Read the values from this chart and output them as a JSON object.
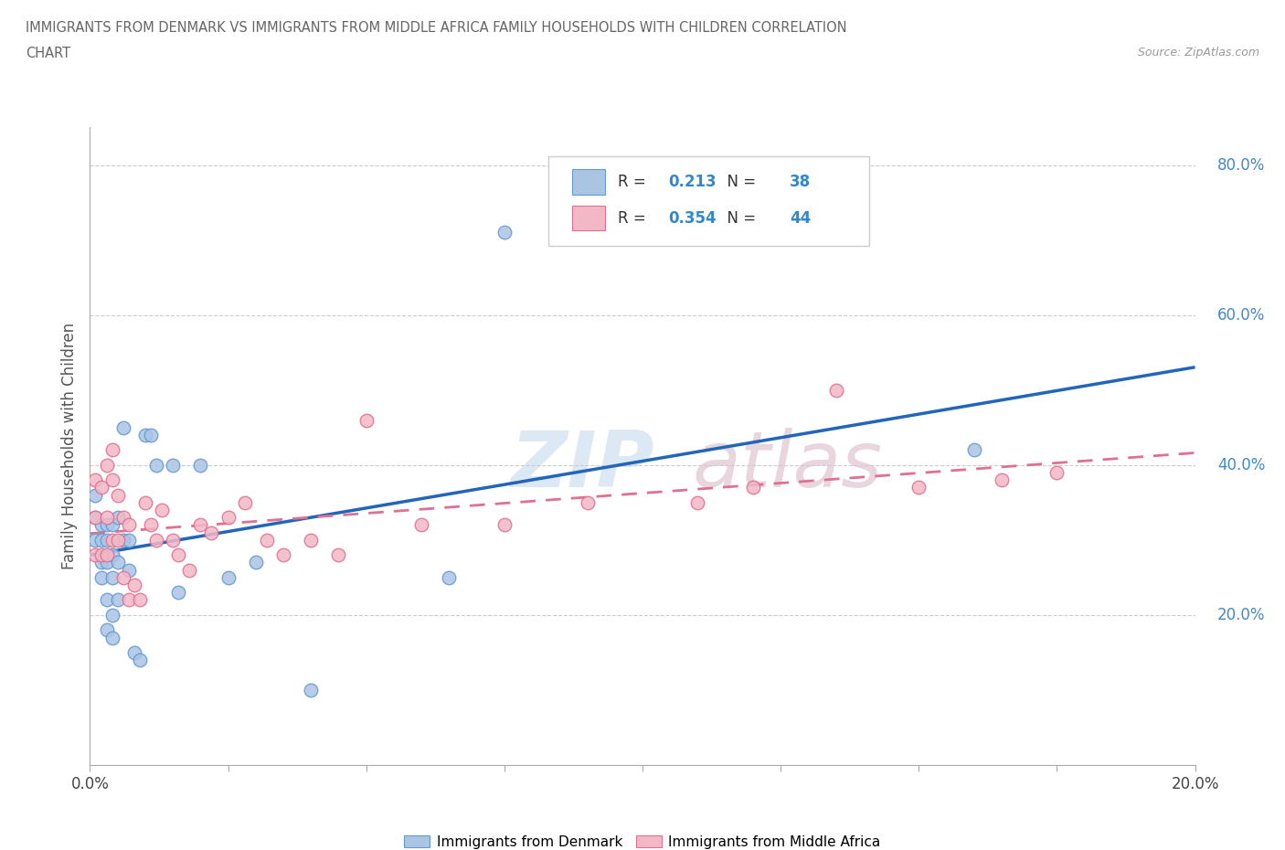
{
  "title_line1": "IMMIGRANTS FROM DENMARK VS IMMIGRANTS FROM MIDDLE AFRICA FAMILY HOUSEHOLDS WITH CHILDREN CORRELATION",
  "title_line2": "CHART",
  "source": "Source: ZipAtlas.com",
  "ylabel": "Family Households with Children",
  "xlim": [
    0.0,
    0.2
  ],
  "ylim": [
    0.0,
    0.85
  ],
  "xticks": [
    0.0,
    0.025,
    0.05,
    0.075,
    0.1,
    0.125,
    0.15,
    0.175,
    0.2
  ],
  "yticks": [
    0.0,
    0.2,
    0.4,
    0.6,
    0.8
  ],
  "denmark_color": "#aac4e4",
  "denmark_edge": "#6699cc",
  "middle_africa_color": "#f2b8c6",
  "middle_africa_edge": "#e07090",
  "denmark_line_color": "#2266bb",
  "middle_africa_line_color": "#e07090",
  "R_denmark": 0.213,
  "N_denmark": 38,
  "R_middle_africa": 0.354,
  "N_middle_africa": 44,
  "denmark_x": [
    0.001,
    0.001,
    0.001,
    0.002,
    0.002,
    0.002,
    0.002,
    0.003,
    0.003,
    0.003,
    0.003,
    0.003,
    0.004,
    0.004,
    0.004,
    0.004,
    0.004,
    0.005,
    0.005,
    0.005,
    0.006,
    0.006,
    0.007,
    0.007,
    0.008,
    0.009,
    0.01,
    0.011,
    0.012,
    0.015,
    0.016,
    0.02,
    0.025,
    0.03,
    0.04,
    0.065,
    0.075,
    0.16
  ],
  "denmark_y": [
    0.3,
    0.33,
    0.36,
    0.25,
    0.27,
    0.3,
    0.32,
    0.18,
    0.22,
    0.27,
    0.3,
    0.32,
    0.17,
    0.2,
    0.25,
    0.28,
    0.32,
    0.22,
    0.27,
    0.33,
    0.45,
    0.3,
    0.26,
    0.3,
    0.15,
    0.14,
    0.44,
    0.44,
    0.4,
    0.4,
    0.23,
    0.4,
    0.25,
    0.27,
    0.1,
    0.25,
    0.71,
    0.42
  ],
  "middle_africa_x": [
    0.001,
    0.001,
    0.001,
    0.002,
    0.002,
    0.003,
    0.003,
    0.003,
    0.004,
    0.004,
    0.004,
    0.005,
    0.005,
    0.006,
    0.006,
    0.007,
    0.007,
    0.008,
    0.009,
    0.01,
    0.011,
    0.012,
    0.013,
    0.015,
    0.016,
    0.018,
    0.02,
    0.022,
    0.025,
    0.028,
    0.032,
    0.035,
    0.04,
    0.045,
    0.05,
    0.06,
    0.075,
    0.09,
    0.11,
    0.12,
    0.135,
    0.15,
    0.165,
    0.175
  ],
  "middle_africa_y": [
    0.28,
    0.33,
    0.38,
    0.28,
    0.37,
    0.28,
    0.33,
    0.4,
    0.3,
    0.38,
    0.42,
    0.3,
    0.36,
    0.25,
    0.33,
    0.22,
    0.32,
    0.24,
    0.22,
    0.35,
    0.32,
    0.3,
    0.34,
    0.3,
    0.28,
    0.26,
    0.32,
    0.31,
    0.33,
    0.35,
    0.3,
    0.28,
    0.3,
    0.28,
    0.46,
    0.32,
    0.32,
    0.35,
    0.35,
    0.37,
    0.5,
    0.37,
    0.38,
    0.39
  ],
  "watermark_zip": "ZIP",
  "watermark_atlas": "atlas",
  "background_color": "#ffffff",
  "grid_color": "#cccccc",
  "tick_color": "#aaaaaa",
  "label_color": "#4488cc",
  "title_color": "#666666",
  "legend_R_color": "#222222",
  "legend_N_color": "#3388cc"
}
